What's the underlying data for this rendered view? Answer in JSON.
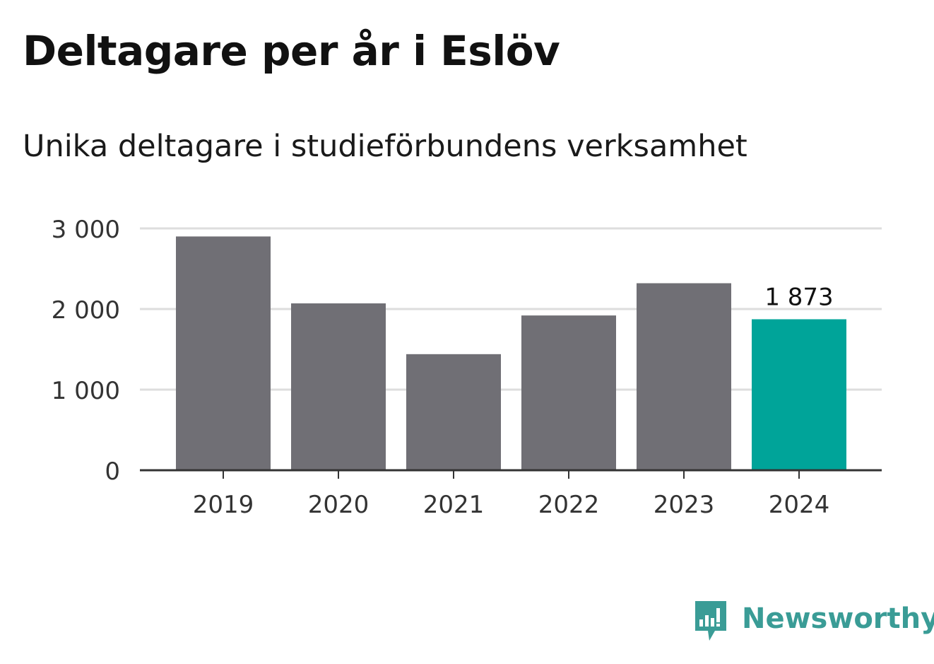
{
  "chart_data": {
    "type": "bar",
    "title": "Deltagare per år i Eslöv",
    "subtitle": "Unika deltagare i studieförbundens verksamhet",
    "categories": [
      "2019",
      "2020",
      "2021",
      "2022",
      "2023",
      "2024"
    ],
    "values": [
      2900,
      2070,
      1440,
      1920,
      2320,
      1873
    ],
    "ylim": [
      0,
      3000
    ],
    "yticks": [
      0,
      1000,
      2000,
      3000
    ],
    "ytick_labels": [
      "0",
      "1 000",
      "2 000",
      "3 000"
    ],
    "xlabel": "",
    "ylabel": "",
    "grid": true,
    "highlight_index": 5,
    "highlight_label": "1 873",
    "colors": {
      "bar": "#706f75",
      "highlight": "#00a499",
      "grid": "#dddddd",
      "axis": "#333333",
      "tick_text": "#333333"
    }
  },
  "brand": {
    "name": "Newsworthy",
    "logo_icon": "newsworthy-logo-icon",
    "color": "#3a9c96"
  }
}
